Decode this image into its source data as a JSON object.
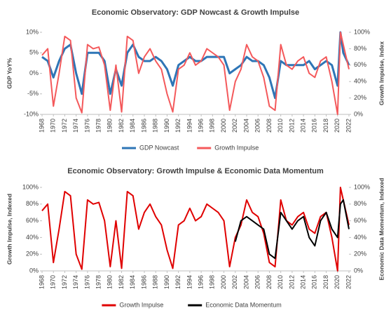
{
  "chart_data": [
    {
      "type": "line",
      "title": "Economic Observatory: GDP Nowcast & Growth Impulse",
      "y_label": "GDP YoY%",
      "y2_label": "Growth Impulse, Index",
      "x": [
        1968,
        1969,
        1970,
        1971,
        1972,
        1973,
        1974,
        1975,
        1976,
        1977,
        1978,
        1979,
        1980,
        1981,
        1982,
        1983,
        1984,
        1985,
        1986,
        1987,
        1988,
        1989,
        1990,
        1991,
        1992,
        1993,
        1994,
        1995,
        1996,
        1997,
        1998,
        1999,
        2000,
        2001,
        2002,
        2003,
        2004,
        2005,
        2006,
        2007,
        2008,
        2009,
        2010,
        2011,
        2012,
        2013,
        2014,
        2015,
        2016,
        2017,
        2018,
        2019,
        2020,
        2020.5,
        2021,
        2022
      ],
      "xlim": [
        1968,
        2022
      ],
      "xticks": [
        1968,
        1970,
        1972,
        1974,
        1976,
        1978,
        1980,
        1982,
        1984,
        1986,
        1988,
        1990,
        1992,
        1994,
        1996,
        1998,
        2000,
        2002,
        2004,
        2006,
        2008,
        2010,
        2012,
        2014,
        2016,
        2018,
        2020,
        2022
      ],
      "ylim": [
        -10,
        10
      ],
      "yticks": [
        {
          "value": -10,
          "label": "-10%"
        },
        {
          "value": -5,
          "label": "-5%"
        },
        {
          "value": 0,
          "label": "0%"
        },
        {
          "value": 5,
          "label": "5%"
        },
        {
          "value": 10,
          "label": "10%"
        }
      ],
      "y2lim": [
        0,
        100
      ],
      "y2ticks": [
        {
          "value": 0,
          "label": "0%"
        },
        {
          "value": 20,
          "label": "20%"
        },
        {
          "value": 40,
          "label": "40%"
        },
        {
          "value": 60,
          "label": "60%"
        },
        {
          "value": 80,
          "label": "80%"
        },
        {
          "value": 100,
          "label": "100%"
        }
      ],
      "series": [
        {
          "name": "GDP Nowcast",
          "color": "#2e75b6",
          "width": 3,
          "values": [
            4,
            3,
            -1,
            3,
            6,
            7,
            0,
            -5,
            5,
            5,
            5,
            3,
            -5,
            1,
            -3,
            5,
            7,
            4,
            3,
            3,
            4,
            3,
            1,
            -3,
            2,
            3,
            4,
            3,
            3,
            4,
            4,
            4,
            4,
            0,
            1,
            2,
            4,
            3,
            3,
            2,
            -1,
            -6,
            3,
            2,
            2,
            2,
            2,
            3,
            1,
            2,
            3,
            2,
            -3,
            10,
            5,
            2
          ]
        },
        {
          "name": "Growth Impulse",
          "color": "#f4595b",
          "width": 2,
          "axis": "y2",
          "values": [
            72,
            80,
            10,
            50,
            95,
            90,
            20,
            2,
            85,
            80,
            82,
            60,
            5,
            60,
            3,
            95,
            90,
            50,
            70,
            80,
            65,
            55,
            25,
            3,
            55,
            60,
            75,
            60,
            65,
            80,
            75,
            70,
            60,
            5,
            40,
            55,
            85,
            70,
            65,
            45,
            10,
            5,
            85,
            60,
            55,
            65,
            70,
            50,
            45,
            65,
            70,
            40,
            0,
            100,
            85,
            55
          ]
        }
      ]
    },
    {
      "type": "line",
      "title": "Economic Observatory: Growth Impulse & Economic Data Momentum",
      "y_label": "Growth Impulse, Indexed",
      "y2_label": "Economic Data Momentum, Indexed",
      "x": [
        1968,
        1969,
        1970,
        1971,
        1972,
        1973,
        1974,
        1975,
        1976,
        1977,
        1978,
        1979,
        1980,
        1981,
        1982,
        1983,
        1984,
        1985,
        1986,
        1987,
        1988,
        1989,
        1990,
        1991,
        1992,
        1993,
        1994,
        1995,
        1996,
        1997,
        1998,
        1999,
        2000,
        2001,
        2002,
        2003,
        2004,
        2005,
        2006,
        2007,
        2008,
        2009,
        2010,
        2011,
        2012,
        2013,
        2014,
        2015,
        2016,
        2017,
        2018,
        2019,
        2020,
        2020.5,
        2021,
        2022
      ],
      "xlim": [
        1968,
        2022
      ],
      "xticks": [
        1968,
        1970,
        1972,
        1974,
        1976,
        1978,
        1980,
        1982,
        1984,
        1986,
        1988,
        1990,
        1992,
        1994,
        1996,
        1998,
        2000,
        2002,
        2004,
        2006,
        2008,
        2010,
        2012,
        2014,
        2016,
        2018,
        2020,
        2022
      ],
      "ylim": [
        0,
        100
      ],
      "yticks": [
        {
          "value": 0,
          "label": "0%"
        },
        {
          "value": 20,
          "label": "20%"
        },
        {
          "value": 40,
          "label": "40%"
        },
        {
          "value": 60,
          "label": "60%"
        },
        {
          "value": 80,
          "label": "80%"
        },
        {
          "value": 100,
          "label": "100%"
        }
      ],
      "y2lim": [
        0,
        100
      ],
      "y2ticks": [
        {
          "value": 0,
          "label": "0%"
        },
        {
          "value": 20,
          "label": "20%"
        },
        {
          "value": 40,
          "label": "40%"
        },
        {
          "value": 60,
          "label": "60%"
        },
        {
          "value": 80,
          "label": "80%"
        },
        {
          "value": 100,
          "label": "100%"
        }
      ],
      "series": [
        {
          "name": "Growth Impulse",
          "color": "#e00000",
          "width": 2,
          "values": [
            72,
            80,
            10,
            50,
            95,
            90,
            20,
            2,
            85,
            80,
            82,
            60,
            5,
            60,
            3,
            95,
            90,
            50,
            70,
            80,
            65,
            55,
            25,
            3,
            55,
            60,
            75,
            60,
            65,
            80,
            75,
            70,
            60,
            5,
            40,
            55,
            85,
            70,
            65,
            45,
            10,
            5,
            85,
            60,
            55,
            65,
            70,
            50,
            45,
            65,
            70,
            40,
            0,
            100,
            85,
            55
          ]
        },
        {
          "name": "Economic Data Momentum",
          "color": "#000000",
          "width": 2,
          "axis": "y2",
          "values": [
            null,
            null,
            null,
            null,
            null,
            null,
            null,
            null,
            null,
            null,
            null,
            null,
            null,
            null,
            null,
            null,
            null,
            null,
            null,
            null,
            null,
            null,
            null,
            null,
            null,
            null,
            null,
            null,
            null,
            null,
            null,
            null,
            null,
            null,
            35,
            60,
            65,
            60,
            55,
            50,
            20,
            15,
            70,
            60,
            50,
            60,
            65,
            40,
            30,
            60,
            70,
            50,
            40,
            80,
            85,
            50
          ]
        }
      ]
    }
  ]
}
